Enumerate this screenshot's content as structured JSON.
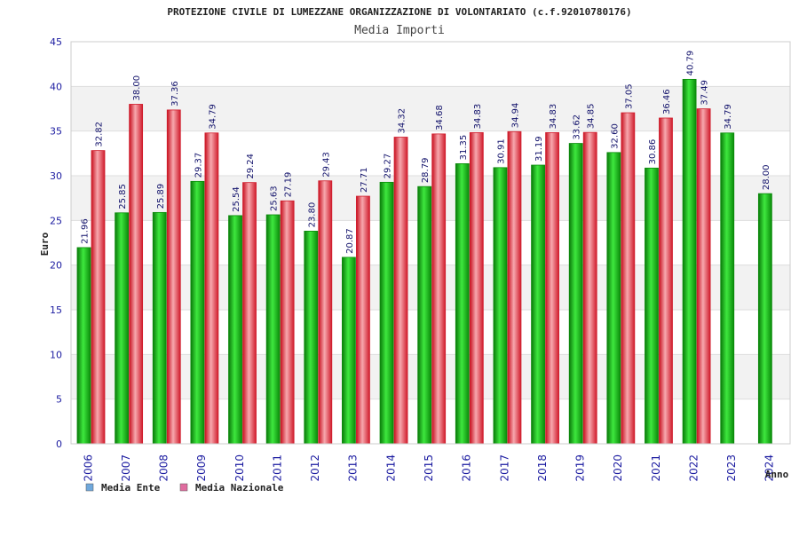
{
  "chart_data": {
    "type": "bar",
    "title": "PROTEZIONE CIVILE DI LUMEZZANE ORGANIZZAZIONE DI VOLONTARIATO (c.f.92010780176)",
    "subtitle": "Media Importi",
    "xlabel": "Anno",
    "ylabel": "Euro",
    "ylim": [
      0,
      45
    ],
    "yticks": [
      0,
      5,
      10,
      15,
      20,
      25,
      30,
      35,
      40,
      45
    ],
    "categories": [
      "2006",
      "2007",
      "2008",
      "2009",
      "2010",
      "2011",
      "2012",
      "2013",
      "2014",
      "2015",
      "2016",
      "2017",
      "2018",
      "2019",
      "2020",
      "2021",
      "2022",
      "2023",
      "2024"
    ],
    "series": [
      {
        "name": "Media Ente",
        "values": [
          21.96,
          25.85,
          25.89,
          29.37,
          25.54,
          25.63,
          23.8,
          20.87,
          29.27,
          28.79,
          31.35,
          30.91,
          31.19,
          33.62,
          32.6,
          30.86,
          40.79,
          34.79,
          28.0
        ],
        "labels": [
          "21.96",
          "25.85",
          "25.89",
          "29.37",
          "25.54",
          "25.63",
          "23.80",
          "20.87",
          "29.27",
          "28.79",
          "31.35",
          "30.91",
          "31.19",
          "33.62",
          "32.60",
          "30.86",
          "40.79",
          "34.79",
          "28.00"
        ]
      },
      {
        "name": "Media Nazionale",
        "values": [
          32.82,
          38.0,
          37.36,
          34.79,
          29.24,
          27.19,
          29.43,
          27.71,
          34.32,
          34.68,
          34.83,
          34.94,
          34.83,
          34.85,
          37.05,
          36.46,
          37.49,
          null,
          null
        ],
        "labels": [
          "32.82",
          "38.00",
          "37.36",
          "34.79",
          "29.24",
          "27.19",
          "29.43",
          "27.71",
          "34.32",
          "34.68",
          "34.83",
          "34.94",
          "34.83",
          "34.85",
          "37.05",
          "36.46",
          "37.49",
          null,
          null
        ]
      }
    ],
    "legend": [
      {
        "name": "Media Ente",
        "color": "#6fa8dc"
      },
      {
        "name": "Media Nazionale",
        "color": "#e06c9f"
      }
    ],
    "legend_position": "bottom-left",
    "grid": true
  },
  "colors": {
    "ente_dark": "#0a8a0a",
    "ente_light": "#3ee83e",
    "naz_dark": "#d01c2c",
    "naz_light": "#f7a8ae",
    "band": "#f2f2f2",
    "grid": "#dddddd"
  }
}
